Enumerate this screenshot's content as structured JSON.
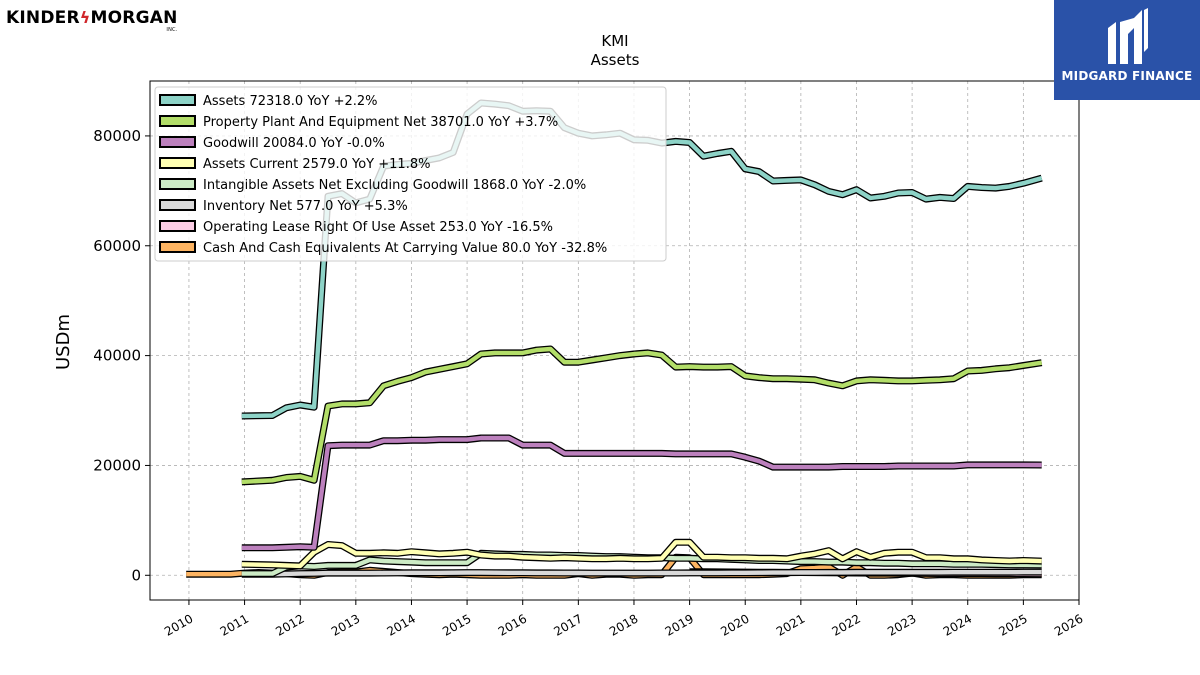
{
  "branding": {
    "company_logo_text": "KINDER MORGAN",
    "company_logo_left": "KINDER",
    "company_logo_right": "MORGAN",
    "company_logo_suffix": "INC.",
    "publisher_logo_text": "MIDGARD FINANCE"
  },
  "chart_data": {
    "type": "line",
    "title": "KMI",
    "subtitle": "Assets",
    "xlabel": "",
    "ylabel": "USDm",
    "xlim": [
      2009.3,
      2026.0
    ],
    "ylim": [
      -4500,
      90000
    ],
    "x_ticks": [
      2010,
      2011,
      2012,
      2013,
      2014,
      2015,
      2016,
      2017,
      2018,
      2019,
      2020,
      2021,
      2022,
      2023,
      2024,
      2025,
      2026
    ],
    "x_tick_labels": [
      "2010",
      "2011",
      "2012",
      "2013",
      "2014",
      "2015",
      "2016",
      "2017",
      "2018",
      "2019",
      "2020",
      "2021",
      "2022",
      "2023",
      "2024",
      "2025",
      "2026"
    ],
    "y_ticks": [
      0,
      20000,
      40000,
      60000,
      80000
    ],
    "y_tick_labels": [
      "0",
      "20000",
      "40000",
      "60000",
      "80000"
    ],
    "grid": true,
    "legend_position": "top-left",
    "series": [
      {
        "name": "Assets",
        "legend": "Assets  72318.0 YoY +2.2%",
        "color": "#8dd3c7",
        "x": [
          2010.95,
          2011.5,
          2011.75,
          2012.0,
          2012.25,
          2012.5,
          2012.75,
          2013.0,
          2013.25,
          2013.5,
          2013.75,
          2014.0,
          2014.25,
          2014.5,
          2014.75,
          2015.0,
          2015.25,
          2015.5,
          2015.75,
          2016.0,
          2016.25,
          2016.5,
          2016.75,
          2017.0,
          2017.25,
          2017.5,
          2017.75,
          2018.0,
          2018.25,
          2018.5,
          2018.75,
          2019.0,
          2019.25,
          2019.5,
          2019.75,
          2020.0,
          2020.25,
          2020.5,
          2020.75,
          2021.0,
          2021.25,
          2021.5,
          2021.75,
          2022.0,
          2022.25,
          2022.5,
          2022.75,
          2023.0,
          2023.25,
          2023.5,
          2023.75,
          2024.0,
          2024.25,
          2024.5,
          2024.75,
          2025.0,
          2025.33
        ],
        "y": [
          29000,
          29100,
          30500,
          31000,
          30600,
          69000,
          69500,
          67800,
          68500,
          74500,
          74800,
          75000,
          75500,
          76000,
          77000,
          84000,
          86000,
          85800,
          85500,
          84500,
          84600,
          84500,
          81500,
          80500,
          80000,
          80200,
          80500,
          79300,
          79200,
          78700,
          79000,
          78800,
          76300,
          76800,
          77200,
          74000,
          73500,
          71800,
          71900,
          72000,
          71100,
          69900,
          69300,
          70200,
          68700,
          69000,
          69600,
          69700,
          68500,
          68800,
          68600,
          70800,
          70600,
          70500,
          70800,
          71400,
          72318
        ]
      },
      {
        "name": "Property Plant And Equipment Net",
        "legend": "Property Plant And Equipment Net  38701.0 YoY +3.7%",
        "color": "#b3de69",
        "x": [
          2010.95,
          2011.5,
          2011.75,
          2012.0,
          2012.25,
          2012.5,
          2012.75,
          2013.0,
          2013.25,
          2013.5,
          2013.75,
          2014.0,
          2014.25,
          2014.5,
          2014.75,
          2015.0,
          2015.25,
          2015.5,
          2015.75,
          2016.0,
          2016.25,
          2016.5,
          2016.75,
          2017.0,
          2017.25,
          2017.5,
          2017.75,
          2018.0,
          2018.25,
          2018.5,
          2018.75,
          2019.0,
          2019.25,
          2019.5,
          2019.75,
          2020.0,
          2020.25,
          2020.5,
          2020.75,
          2021.0,
          2021.25,
          2021.5,
          2021.75,
          2022.0,
          2022.25,
          2022.5,
          2022.75,
          2023.0,
          2023.25,
          2023.5,
          2023.75,
          2024.0,
          2024.25,
          2024.5,
          2024.75,
          2025.0,
          2025.33
        ],
        "y": [
          17000,
          17300,
          17800,
          18000,
          17300,
          30800,
          31200,
          31200,
          31400,
          34500,
          35300,
          36000,
          37000,
          37500,
          38000,
          38500,
          40300,
          40500,
          40500,
          40500,
          41000,
          41200,
          38800,
          38800,
          39200,
          39600,
          40000,
          40300,
          40500,
          40100,
          37900,
          38000,
          37900,
          37900,
          38000,
          36300,
          36000,
          35800,
          35800,
          35700,
          35600,
          35000,
          34500,
          35400,
          35600,
          35500,
          35400,
          35400,
          35500,
          35600,
          35800,
          37200,
          37300,
          37600,
          37800,
          38200,
          38701
        ]
      },
      {
        "name": "Goodwill",
        "legend": "Goodwill  20084.0 YoY -0.0%",
        "color": "#bc80bd",
        "x": [
          2010.95,
          2011.5,
          2011.75,
          2012.0,
          2012.25,
          2012.5,
          2012.75,
          2013.0,
          2013.25,
          2013.5,
          2013.75,
          2014.0,
          2014.25,
          2014.5,
          2014.75,
          2015.0,
          2015.25,
          2015.5,
          2015.75,
          2016.0,
          2016.25,
          2016.5,
          2016.75,
          2017.0,
          2017.25,
          2017.5,
          2017.75,
          2018.0,
          2018.25,
          2018.5,
          2018.75,
          2019.0,
          2019.25,
          2019.5,
          2019.75,
          2020.0,
          2020.25,
          2020.5,
          2020.75,
          2021.0,
          2021.25,
          2021.5,
          2021.75,
          2022.0,
          2022.25,
          2022.5,
          2022.75,
          2023.0,
          2023.25,
          2023.5,
          2023.75,
          2024.0,
          2024.25,
          2024.5,
          2024.75,
          2025.0,
          2025.33
        ],
        "y": [
          5000,
          5000,
          5100,
          5200,
          5100,
          23600,
          23700,
          23700,
          23700,
          24500,
          24500,
          24600,
          24600,
          24700,
          24700,
          24700,
          25000,
          25000,
          25000,
          23700,
          23700,
          23700,
          22200,
          22200,
          22200,
          22200,
          22200,
          22200,
          22200,
          22200,
          22100,
          22100,
          22100,
          22100,
          22100,
          21500,
          20800,
          19700,
          19700,
          19700,
          19700,
          19700,
          19800,
          19800,
          19800,
          19800,
          19900,
          19900,
          19900,
          19900,
          19900,
          20100,
          20100,
          20100,
          20100,
          20100,
          20084
        ]
      },
      {
        "name": "Assets Current",
        "legend": "Assets Current  2579.0 YoY +11.8%",
        "color": "#ffffb3",
        "x": [
          2010.95,
          2011.5,
          2011.75,
          2012.0,
          2012.25,
          2012.5,
          2012.75,
          2013.0,
          2013.25,
          2013.5,
          2013.75,
          2014.0,
          2014.25,
          2014.5,
          2014.75,
          2015.0,
          2015.25,
          2015.5,
          2015.75,
          2016.0,
          2016.25,
          2016.5,
          2016.75,
          2017.0,
          2017.25,
          2017.5,
          2017.75,
          2018.0,
          2018.25,
          2018.5,
          2018.75,
          2019.0,
          2019.25,
          2019.5,
          2019.75,
          2020.0,
          2020.25,
          2020.5,
          2020.75,
          2021.0,
          2021.25,
          2021.5,
          2021.75,
          2022.0,
          2022.25,
          2022.5,
          2022.75,
          2023.0,
          2023.25,
          2023.5,
          2023.75,
          2024.0,
          2024.25,
          2024.5,
          2024.75,
          2025.0,
          2025.33
        ],
        "y": [
          2000,
          1900,
          1800,
          1700,
          4200,
          5600,
          5400,
          4000,
          4000,
          4100,
          4000,
          4300,
          4100,
          3900,
          4000,
          4200,
          3700,
          3500,
          3500,
          3300,
          3200,
          3100,
          3200,
          3100,
          3000,
          3000,
          3100,
          3000,
          3000,
          3100,
          6000,
          6000,
          3300,
          3300,
          3200,
          3200,
          3100,
          3100,
          3000,
          3500,
          3900,
          4500,
          3000,
          4300,
          3300,
          4000,
          4200,
          4200,
          3200,
          3200,
          3000,
          3000,
          2800,
          2700,
          2600,
          2700,
          2579
        ]
      },
      {
        "name": "Intangible Assets Net Excluding Goodwill",
        "legend": "Intangible Assets Net Excluding Goodwill  1868.0 YoY -2.0%",
        "color": "#ccebc5",
        "x": [
          2010.95,
          2011.5,
          2011.75,
          2012.0,
          2012.25,
          2012.5,
          2012.75,
          2013.0,
          2013.25,
          2013.5,
          2013.75,
          2014.0,
          2014.25,
          2014.5,
          2014.75,
          2015.0,
          2015.25,
          2015.5,
          2015.75,
          2016.0,
          2016.25,
          2016.5,
          2016.75,
          2017.0,
          2017.25,
          2017.5,
          2017.75,
          2018.0,
          2018.25,
          2018.5,
          2018.75,
          2019.0,
          2019.25,
          2019.5,
          2019.75,
          2020.0,
          2020.25,
          2020.5,
          2020.75,
          2021.0,
          2021.25,
          2021.5,
          2021.75,
          2022.0,
          2022.25,
          2022.5,
          2022.75,
          2023.0,
          2023.25,
          2023.5,
          2023.75,
          2024.0,
          2024.25,
          2024.5,
          2024.75,
          2025.0,
          2025.33
        ],
        "y": [
          300,
          300,
          1500,
          1700,
          1600,
          1800,
          1800,
          1800,
          2800,
          2600,
          2500,
          2400,
          2300,
          2300,
          2300,
          2300,
          4000,
          3900,
          3800,
          3800,
          3700,
          3700,
          3600,
          3600,
          3500,
          3400,
          3400,
          3300,
          3200,
          3200,
          3100,
          3100,
          3000,
          3000,
          2900,
          2800,
          2700,
          2700,
          2600,
          2500,
          2500,
          2400,
          2400,
          2300,
          2300,
          2200,
          2200,
          2100,
          2100,
          2100,
          2000,
          2000,
          2000,
          1950,
          1900,
          1900,
          1868
        ]
      },
      {
        "name": "Inventory Net",
        "legend": "Inventory Net  577.0 YoY +5.3%",
        "color": "#d9d9d9",
        "x": [
          2010.95,
          2011.5,
          2011.75,
          2012.0,
          2012.25,
          2012.5,
          2012.75,
          2013.0,
          2013.25,
          2013.5,
          2013.75,
          2014.0,
          2014.25,
          2014.5,
          2014.75,
          2015.0,
          2015.25,
          2015.5,
          2015.75,
          2016.0,
          2016.25,
          2016.5,
          2016.75,
          2017.0,
          2017.25,
          2017.5,
          2017.75,
          2018.0,
          2018.25,
          2018.5,
          2018.75,
          2019.0,
          2019.25,
          2019.5,
          2019.75,
          2020.0,
          2020.25,
          2020.5,
          2020.75,
          2021.0,
          2021.25,
          2021.5,
          2021.75,
          2022.0,
          2022.25,
          2022.5,
          2022.75,
          2023.0,
          2023.25,
          2023.5,
          2023.75,
          2024.0,
          2024.25,
          2024.5,
          2024.75,
          2025.0,
          2025.33
        ],
        "y": [
          200,
          200,
          250,
          300,
          350,
          400,
          400,
          400,
          400,
          420,
          430,
          450,
          450,
          460,
          470,
          480,
          480,
          470,
          460,
          450,
          440,
          430,
          420,
          410,
          400,
          400,
          400,
          400,
          400,
          410,
          420,
          430,
          430,
          440,
          450,
          460,
          470,
          480,
          490,
          500,
          510,
          520,
          530,
          540,
          540,
          540,
          540,
          545,
          550,
          550,
          555,
          560,
          565,
          570,
          570,
          575,
          577
        ]
      },
      {
        "name": "Operating Lease Right Of Use Asset",
        "legend": "Operating Lease Right Of Use Asset  253.0 YoY -16.5%",
        "color": "#fccde5",
        "x": [
          2019.0,
          2019.25,
          2019.5,
          2019.75,
          2020.0,
          2020.25,
          2020.5,
          2020.75,
          2021.0,
          2021.25,
          2021.5,
          2021.75,
          2022.0,
          2022.25,
          2022.5,
          2022.75,
          2023.0,
          2023.25,
          2023.5,
          2023.75,
          2024.0,
          2024.25,
          2024.5,
          2024.75,
          2025.0,
          2025.33
        ],
        "y": [
          650,
          640,
          620,
          600,
          580,
          560,
          540,
          520,
          500,
          480,
          460,
          440,
          420,
          400,
          390,
          380,
          370,
          350,
          330,
          320,
          303,
          300,
          290,
          280,
          270,
          253
        ]
      },
      {
        "name": "Cash And Cash Equivalents At Carrying Value",
        "legend": "Cash And Cash Equivalents At Carrying Value  80.0 YoY -32.8%",
        "color": "#fdb462",
        "x": [
          2009.95,
          2010.5,
          2010.75,
          2011.0,
          2011.25,
          2011.5,
          2011.75,
          2012.0,
          2012.25,
          2012.5,
          2012.75,
          2013.0,
          2013.25,
          2013.5,
          2013.75,
          2014.0,
          2014.25,
          2014.5,
          2014.75,
          2015.0,
          2015.25,
          2015.5,
          2015.75,
          2016.0,
          2016.25,
          2016.5,
          2016.75,
          2017.0,
          2017.25,
          2017.5,
          2017.75,
          2018.0,
          2018.25,
          2018.5,
          2018.75,
          2019.0,
          2019.25,
          2019.5,
          2019.75,
          2020.0,
          2020.25,
          2020.5,
          2020.75,
          2021.0,
          2021.25,
          2021.5,
          2021.75,
          2022.0,
          2022.25,
          2022.5,
          2022.75,
          2023.0,
          2023.25,
          2023.5,
          2023.75,
          2024.0,
          2024.25,
          2024.5,
          2024.75,
          2025.0,
          2025.33
        ],
        "y": [
          200,
          200,
          200,
          400,
          500,
          400,
          300,
          100,
          0,
          500,
          600,
          600,
          900,
          700,
          500,
          300,
          200,
          100,
          200,
          100,
          0,
          0,
          0,
          100,
          0,
          0,
          0,
          300,
          0,
          200,
          200,
          0,
          100,
          100,
          3300,
          3200,
          100,
          100,
          100,
          100,
          100,
          200,
          300,
          1200,
          1300,
          1500,
          0,
          1500,
          0,
          0,
          100,
          400,
          0,
          100,
          100,
          0,
          0,
          0,
          0,
          100,
          80
        ]
      }
    ]
  }
}
